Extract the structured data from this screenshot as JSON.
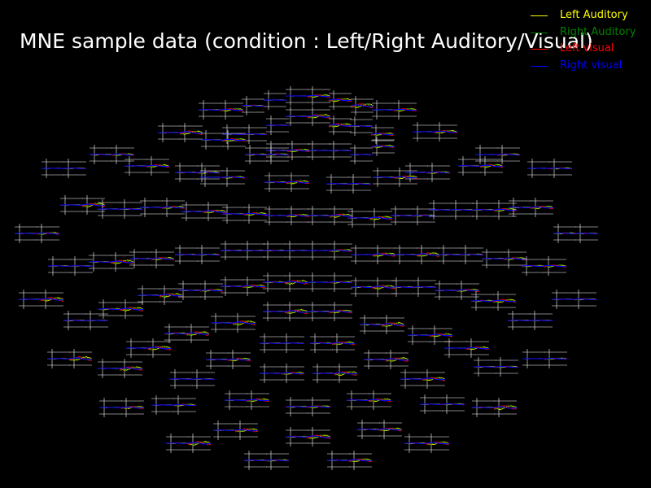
{
  "chart_data": {
    "type": "line",
    "title": "MNE sample data (condition : Left/Right Auditory/Visual)",
    "xlabel": "",
    "ylabel": "",
    "grid": false,
    "background": "#000000",
    "axis_color": "#ffffff",
    "legend_placement": "top-right",
    "series": [
      {
        "name": "Left Auditory",
        "color": "#ffff00"
      },
      {
        "name": "Right Auditory",
        "color": "#008000"
      },
      {
        "name": "Left visual",
        "color": "#ff0000"
      },
      {
        "name": "Right visual",
        "color": "#0000ff"
      }
    ]
  }
}
